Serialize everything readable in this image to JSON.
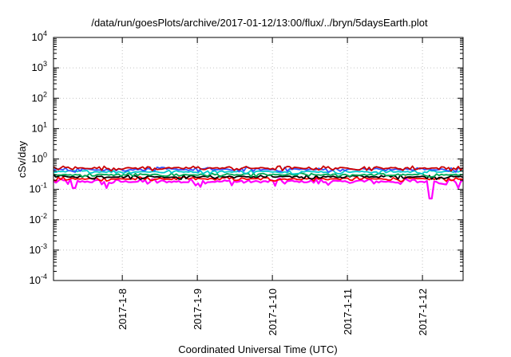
{
  "chart_data": {
    "type": "line",
    "title": "/data/run/goesPlots/archive/2017-01-12/13:00/flux/../bryn/5daysEarth.plot",
    "xlabel": "Coordinated Universal Time (UTC)",
    "ylabel": "cSv/day",
    "yscale": "log",
    "ylim": [
      0.0001,
      10000
    ],
    "xlim": [
      "2017-01-07 02:00",
      "2017-01-12 13:00"
    ],
    "xticks": [
      "2017-1-8",
      "2017-1-9",
      "2017-1-10",
      "2017-1-11",
      "2017-1-12"
    ],
    "ytick_exponents": [
      "-4",
      "-3",
      "-2",
      "-1",
      "0",
      "1",
      "2",
      "3",
      "4"
    ],
    "ytick_base": "10",
    "grid": true,
    "legend": "none",
    "colors": [
      "#ff00ff",
      "#ff0000",
      "#000000",
      "#00aa55",
      "#00cccc",
      "#3355ff",
      "#cc0000"
    ],
    "series": [
      {
        "color": "#ff00ff",
        "level": 0.18,
        "spread": 0.05,
        "dips": [
          [
            0.92,
            0.05
          ],
          [
            0.05,
            0.11
          ],
          [
            0.13,
            0.11
          ],
          [
            0.36,
            0.12
          ],
          [
            0.54,
            0.13
          ],
          [
            0.99,
            0.11
          ]
        ]
      },
      {
        "color": "#ff0000",
        "level": 0.22,
        "spread": 0.04,
        "dips": []
      },
      {
        "color": "#000000",
        "level": 0.26,
        "spread": 0.05,
        "dips": []
      },
      {
        "color": "#00aa55",
        "level": 0.3,
        "spread": 0.05,
        "dips": []
      },
      {
        "color": "#00cccc",
        "level": 0.38,
        "spread": 0.06,
        "dips": []
      },
      {
        "color": "#3355ff",
        "level": 0.45,
        "spread": 0.09,
        "dips": []
      },
      {
        "color": "#cc0000",
        "level": 0.5,
        "spread": 0.1,
        "dips": []
      }
    ]
  }
}
